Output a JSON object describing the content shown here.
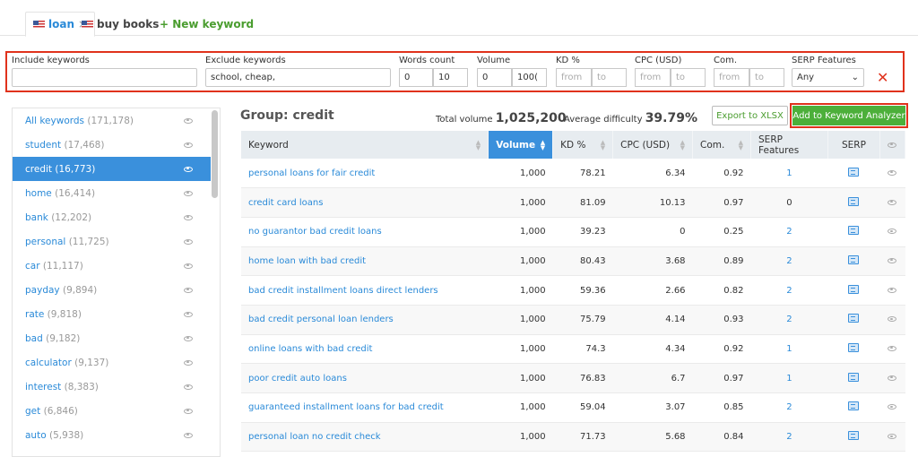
{
  "tabs": [
    {
      "label": "loan",
      "active": true
    },
    {
      "label": "buy books",
      "active": false
    }
  ],
  "new_keyword": "+ New keyword",
  "filters": {
    "include": {
      "label": "Include keywords",
      "value": ""
    },
    "exclude": {
      "label": "Exclude keywords",
      "value": "school, cheap,"
    },
    "words": {
      "label": "Words count",
      "from": "0",
      "to": "10"
    },
    "volume": {
      "label": "Volume",
      "from": "0",
      "to": "100("
    },
    "kd": {
      "label": "KD %",
      "from_ph": "from",
      "to_ph": "to"
    },
    "cpc": {
      "label": "CPC (USD)",
      "from_ph": "from",
      "to_ph": "to"
    },
    "com": {
      "label": "Com.",
      "from_ph": "from",
      "to_ph": "to"
    },
    "serp": {
      "label": "SERP Features",
      "value": "Any"
    },
    "clear": "✕"
  },
  "sidebar": [
    {
      "name": "All keywords",
      "count": "(171,178)"
    },
    {
      "name": "student",
      "count": "(17,468)"
    },
    {
      "name": "credit",
      "count": "(16,773)",
      "active": true
    },
    {
      "name": "home",
      "count": "(16,414)"
    },
    {
      "name": "bank",
      "count": "(12,202)"
    },
    {
      "name": "personal",
      "count": "(11,725)"
    },
    {
      "name": "car",
      "count": "(11,117)"
    },
    {
      "name": "payday",
      "count": "(9,894)"
    },
    {
      "name": "rate",
      "count": "(9,818)"
    },
    {
      "name": "bad",
      "count": "(9,182)"
    },
    {
      "name": "calculator",
      "count": "(9,137)"
    },
    {
      "name": "interest",
      "count": "(8,383)"
    },
    {
      "name": "get",
      "count": "(6,846)"
    },
    {
      "name": "auto",
      "count": "(5,938)"
    }
  ],
  "group": {
    "title": "Group:  credit",
    "total_label": "Total volume",
    "total": "1,025,200",
    "diff_label": "Average difficulty",
    "diff": "39.79%"
  },
  "buttons": {
    "export": "Export to XLSX",
    "add": "Add to Keyword Analyzer"
  },
  "columns": [
    "Keyword",
    "Volume",
    "KD %",
    "CPC (USD)",
    "Com.",
    "SERP Features",
    "SERP"
  ],
  "sorted_column": "Volume",
  "rows": [
    [
      "personal loans for fair credit",
      "1,000",
      "78.21",
      "6.34",
      "0.92",
      "1"
    ],
    [
      "credit card loans",
      "1,000",
      "81.09",
      "10.13",
      "0.97",
      "0"
    ],
    [
      "no guarantor bad credit loans",
      "1,000",
      "39.23",
      "0",
      "0.25",
      "2"
    ],
    [
      "home loan with bad credit",
      "1,000",
      "80.43",
      "3.68",
      "0.89",
      "2"
    ],
    [
      "bad credit installment loans direct lenders",
      "1,000",
      "59.36",
      "2.66",
      "0.82",
      "2"
    ],
    [
      "bad credit personal loan lenders",
      "1,000",
      "75.79",
      "4.14",
      "0.93",
      "2"
    ],
    [
      "online loans with bad credit",
      "1,000",
      "74.3",
      "4.34",
      "0.92",
      "1"
    ],
    [
      "poor credit auto loans",
      "1,000",
      "76.83",
      "6.7",
      "0.97",
      "1"
    ],
    [
      "guaranteed installment loans for bad credit",
      "1,000",
      "59.04",
      "3.07",
      "0.85",
      "2"
    ],
    [
      "personal loan no credit check",
      "1,000",
      "71.73",
      "5.68",
      "0.84",
      "2"
    ]
  ],
  "colors": {
    "accent": "#3a90dc",
    "green": "#4caf3a",
    "red": "#e0321c"
  }
}
